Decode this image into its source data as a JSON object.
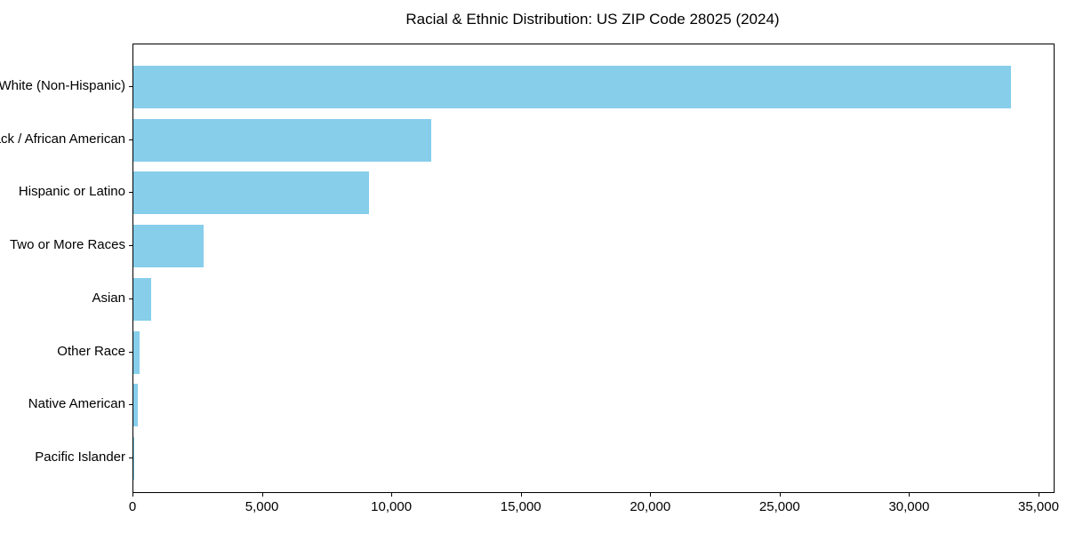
{
  "title": "Racial & Ethnic Distribution: US ZIP Code 28025 (2024)",
  "colors": {
    "bar": "#87CEEB",
    "axis": "#000000",
    "background": "#FFFFFF",
    "text": "#000000"
  },
  "chart_data": {
    "type": "bar",
    "orientation": "horizontal",
    "title": "Racial & Ethnic Distribution: US ZIP Code 28025 (2024)",
    "categories": [
      "White (Non-Hispanic)",
      "Black / African American",
      "Hispanic or Latino",
      "Two or More Races",
      "Asian",
      "Other Race",
      "Native American",
      "Pacific Islander"
    ],
    "values": [
      33900,
      11500,
      9100,
      2700,
      700,
      230,
      160,
      20
    ],
    "xlabel": "",
    "ylabel": "",
    "xlim": [
      0,
      35550
    ],
    "xticks": [
      0,
      5000,
      10000,
      15000,
      20000,
      25000,
      30000,
      35000
    ],
    "xtick_labels": [
      "0",
      "5,000",
      "10,000",
      "15,000",
      "20,000",
      "25,000",
      "30,000",
      "35,000"
    ],
    "bar_color": "#87CEEB",
    "grid": false,
    "legend": null
  }
}
